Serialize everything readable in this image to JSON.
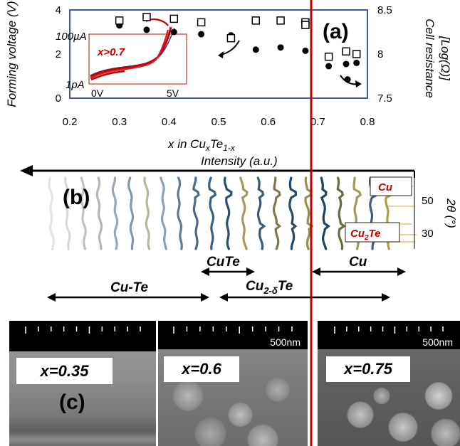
{
  "panel_a": {
    "label": "(a)",
    "y_left_label": "Forming voltage (V)",
    "y_right_label_1": "Cell resistance",
    "y_right_label_2": "[Log(Ω)]",
    "x_label_prefix": "x in Cu",
    "x_label_sub1": "x",
    "x_label_mid": "Te",
    "x_label_sub2": "1-x",
    "x_ticks": [
      "0.2",
      "0.3",
      "0.4",
      "0.5",
      "0.6",
      "0.7",
      "0.8"
    ],
    "y_left_ticks": [
      "0",
      "2",
      "4"
    ],
    "y_right_ticks": [
      "7.5",
      "8",
      "8.5"
    ],
    "inset": {
      "top_label": "100µA",
      "bottom_label": "1pA",
      "x_start_label": "0V",
      "x_end_label": "5V",
      "annotation": "x>0.7"
    }
  },
  "panel_b": {
    "label": "(b)",
    "intensity_label": "Intensity (a.u.)",
    "y_label": "2θ (°)",
    "y_ticks": [
      "50",
      "30"
    ],
    "peak_label_cu": "Cu",
    "peak_label_cu2te": "Cu",
    "peak_label_cu2te_sub": "2",
    "peak_label_cu2te_tail": "Te"
  },
  "phases": {
    "cute": "CuTe",
    "cu": "Cu",
    "cu_te": "Cu-Te",
    "cu2dte_prefix": "Cu",
    "cu2dte_sub": "2-δ",
    "cu2dte_tail": "Te"
  },
  "panel_c": {
    "label": "(c)",
    "scale_label": "500nm",
    "images": [
      {
        "label": "x=0.35"
      },
      {
        "label": "x=0.6"
      },
      {
        "label": "x=0.75"
      }
    ]
  },
  "chart_data": {
    "type": "scatter",
    "title": "",
    "xlabel": "x in CuxTe1-x",
    "ylabel": "Forming voltage (V)",
    "y2label": "Cell resistance [Log(Ω)]",
    "xlim": [
      0.2,
      0.8
    ],
    "ylim": [
      0,
      4
    ],
    "y2lim": [
      7.5,
      8.5
    ],
    "grid": false,
    "series": [
      {
        "name": "Forming voltage (V)",
        "marker": "filled-circle",
        "axis": "left",
        "x": [
          0.3,
          0.355,
          0.41,
          0.465,
          0.525,
          0.575,
          0.625,
          0.675,
          0.722,
          0.757,
          0.778,
          0.76
        ],
        "y": [
          3.3,
          3.1,
          3.0,
          2.9,
          2.85,
          2.2,
          2.3,
          2.15,
          1.45,
          1.55,
          1.6,
          0.85
        ]
      },
      {
        "name": "Cell resistance [Log(Ω)]",
        "marker": "open-square",
        "axis": "right",
        "x": [
          0.3,
          0.355,
          0.41,
          0.465,
          0.525,
          0.575,
          0.625,
          0.675,
          0.675,
          0.722,
          0.757,
          0.778
        ],
        "y": [
          8.38,
          8.42,
          8.4,
          8.36,
          8.18,
          8.38,
          8.38,
          8.36,
          8.33,
          7.97,
          8.03,
          8.0
        ]
      }
    ],
    "annotations": [
      "vertical line at x = 0.7"
    ]
  }
}
